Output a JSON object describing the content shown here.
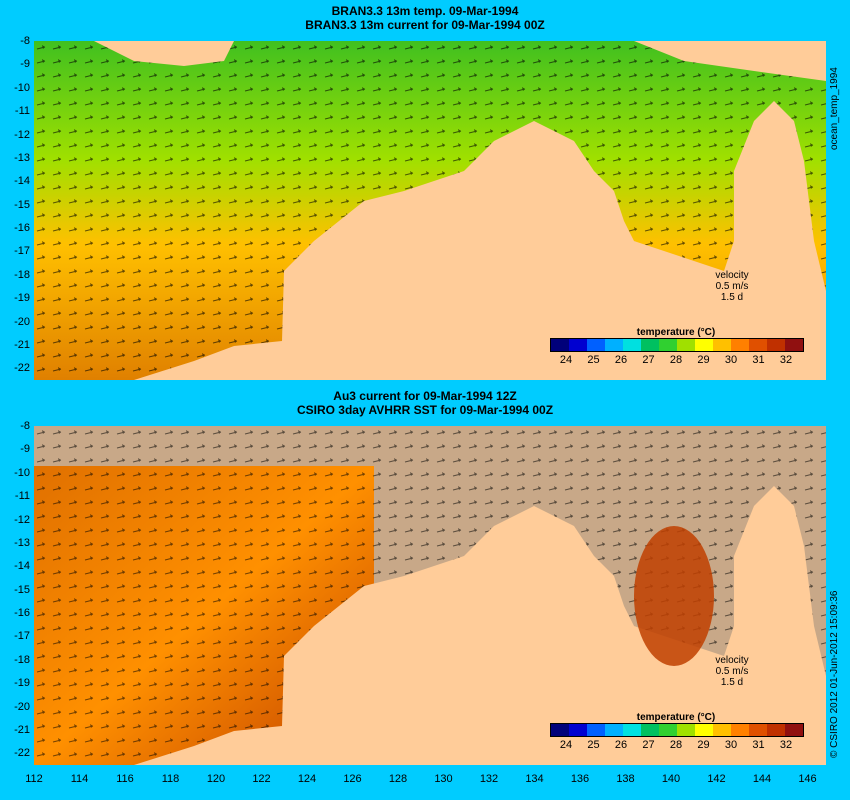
{
  "top_panel": {
    "title_line1": "BRAN3.3 13m temp. 09-Mar-1994",
    "title_line2": "BRAN3.3 13m current for 09-Mar-1994 00Z",
    "side_label": "ocean_temp_1994"
  },
  "bottom_panel": {
    "title_line1": "Au3 current for 09-Mar-1994 12Z",
    "title_line2": "CSIRO 3day AVHRR SST for 09-Mar-1994 00Z",
    "side_label": "© CSIRO 2012   01-Jun-2012 15:09:36"
  },
  "velocity_legend": {
    "title": "velocity",
    "speed": "0.5 m/s",
    "duration": "1.5 d"
  },
  "colorbar": {
    "title": "temperature (°C)",
    "ticks": [
      "24",
      "25",
      "26",
      "27",
      "28",
      "29",
      "30",
      "31",
      "32"
    ],
    "colors": [
      "#00007a",
      "#0000d0",
      "#0060ff",
      "#00b0ff",
      "#00e0e0",
      "#00c060",
      "#30d030",
      "#a0e000",
      "#ffff00",
      "#ffc000",
      "#ff8000",
      "#e05000",
      "#c03000",
      "#901010"
    ]
  },
  "y_ticks": [
    "-8",
    "-9",
    "-10",
    "-11",
    "-12",
    "-13",
    "-14",
    "-15",
    "-16",
    "-17",
    "-18",
    "-19",
    "-20",
    "-21",
    "-22"
  ],
  "x_ticks": [
    "112",
    "114",
    "116",
    "118",
    "120",
    "122",
    "124",
    "126",
    "128",
    "130",
    "132",
    "134",
    "136",
    "138",
    "140",
    "142",
    "144",
    "146"
  ],
  "colors": {
    "background": "#00ccff",
    "land": "#ffcc99",
    "nodata": "#c8a888"
  }
}
